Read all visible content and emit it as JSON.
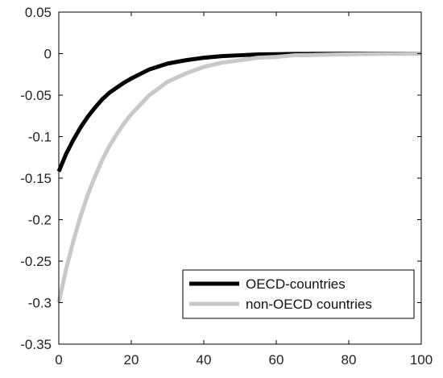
{
  "chart_data": {
    "type": "line",
    "title": "",
    "xlabel": "",
    "ylabel": "",
    "xlim": [
      0,
      100
    ],
    "ylim": [
      -0.35,
      0.05
    ],
    "xticks": [
      0,
      20,
      40,
      60,
      80,
      100
    ],
    "xtick_labels": [
      "0",
      "20",
      "40",
      "60",
      "80",
      "100"
    ],
    "yticks": [
      0.05,
      0,
      -0.05,
      -0.1,
      -0.15,
      -0.2,
      -0.25,
      -0.3,
      -0.35
    ],
    "ytick_labels": [
      "0.05",
      "0",
      "-0.05",
      "-0.1",
      "-0.15",
      "-0.2",
      "-0.25",
      "-0.3",
      "-0.35"
    ],
    "grid": false,
    "legend_position": "bottom-right",
    "series": [
      {
        "name": "OECD-countries",
        "color": "#000000",
        "x": [
          0,
          2,
          4,
          6,
          8,
          10,
          12,
          14,
          16,
          18,
          20,
          25,
          30,
          35,
          40,
          45,
          50,
          55,
          60,
          65,
          70,
          75,
          80,
          85,
          90,
          95,
          100
        ],
        "y": [
          -0.142,
          -0.121,
          -0.104,
          -0.089,
          -0.076,
          -0.065,
          -0.055,
          -0.047,
          -0.041,
          -0.035,
          -0.03,
          -0.019,
          -0.012,
          -0.008,
          -0.005,
          -0.003,
          -0.002,
          -0.001,
          -0.0007,
          -0.0004,
          -0.0003,
          -0.0002,
          -0.0001,
          0,
          0,
          0,
          0
        ]
      },
      {
        "name": "non-OECD countries",
        "color": "#c8c8c8",
        "x": [
          0,
          2,
          4,
          6,
          8,
          10,
          12,
          14,
          16,
          18,
          20,
          25,
          30,
          35,
          40,
          45,
          50,
          55,
          60,
          65,
          70,
          75,
          80,
          85,
          90,
          95,
          100
        ],
        "y": [
          -0.3,
          -0.26,
          -0.226,
          -0.196,
          -0.17,
          -0.148,
          -0.128,
          -0.111,
          -0.097,
          -0.084,
          -0.073,
          -0.05,
          -0.034,
          -0.024,
          -0.016,
          -0.011,
          -0.008,
          -0.005,
          -0.004,
          -0.002,
          -0.0017,
          -0.0012,
          -0.0008,
          -0.0005,
          -0.0004,
          -0.0002,
          -0.0001
        ]
      }
    ]
  }
}
